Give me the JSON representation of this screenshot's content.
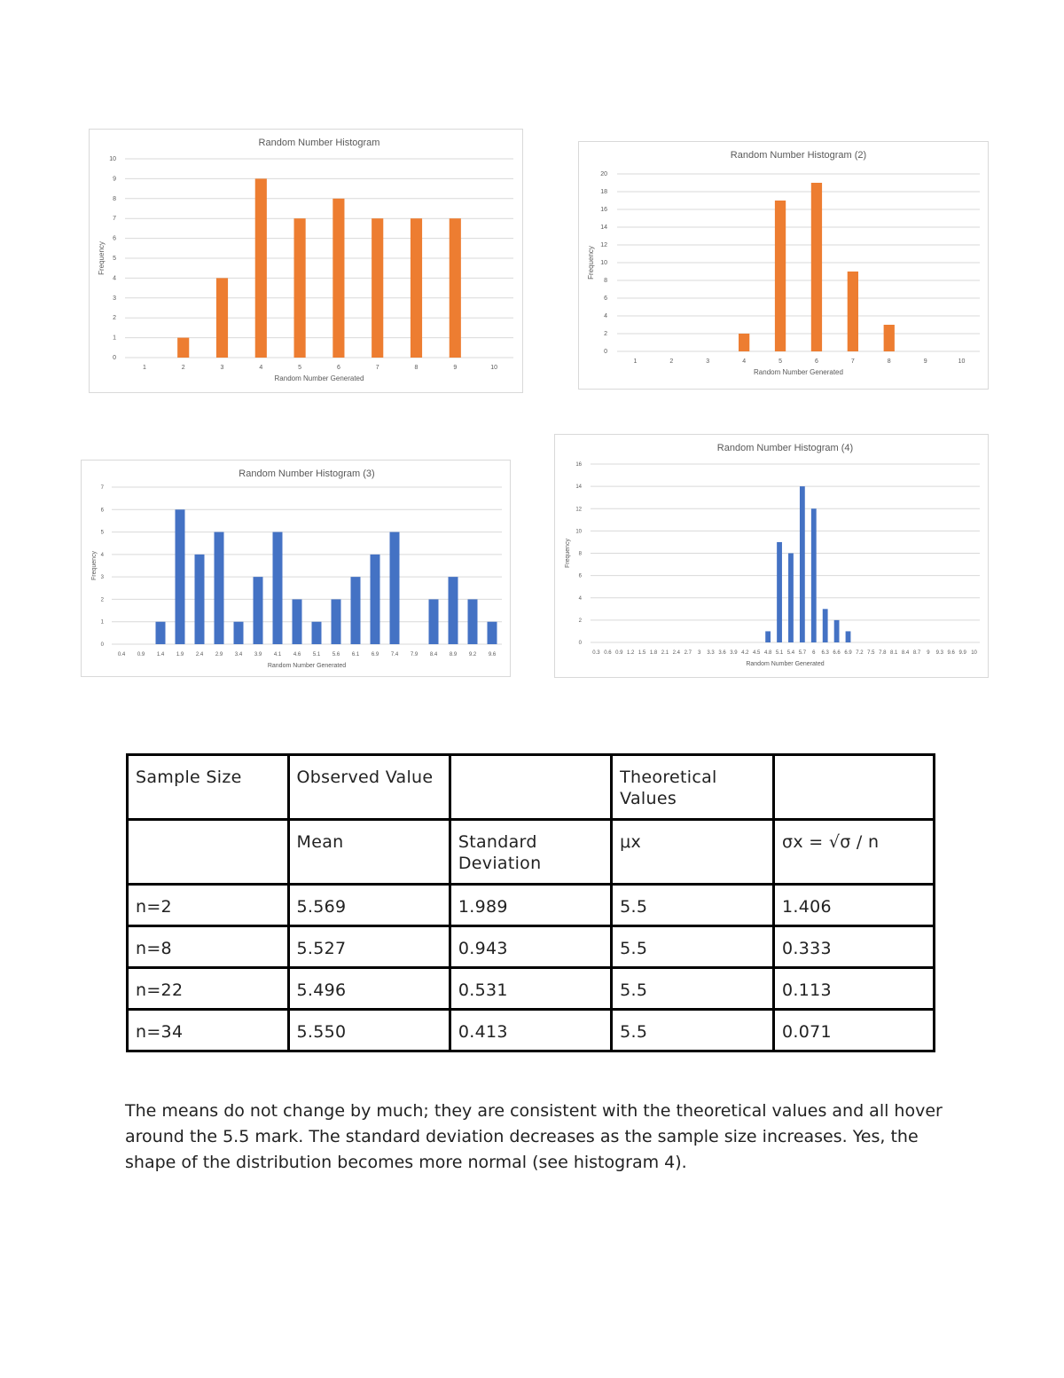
{
  "chart_data": [
    {
      "type": "bar",
      "title": "Random Number Histogram",
      "xlabel": "Random Number Generated",
      "ylabel": "Frequency",
      "categories": [
        "1",
        "2",
        "3",
        "4",
        "5",
        "6",
        "7",
        "8",
        "9",
        "10"
      ],
      "values": [
        0,
        1,
        4,
        9,
        7,
        8,
        7,
        7,
        7,
        0
      ],
      "yticks": [
        0,
        1,
        2,
        3,
        4,
        5,
        6,
        7,
        8,
        9,
        10
      ],
      "ylim": [
        0,
        10
      ],
      "color": "#ED7D31",
      "grid": true
    },
    {
      "type": "bar",
      "title": "Random Number Histogram (2)",
      "xlabel": "Random Number Generated",
      "ylabel": "Frequency",
      "categories": [
        "1",
        "2",
        "3",
        "4",
        "5",
        "6",
        "7",
        "8",
        "9",
        "10"
      ],
      "values": [
        0,
        0,
        0,
        2,
        17,
        19,
        9,
        3,
        0,
        0
      ],
      "yticks": [
        0,
        2,
        4,
        6,
        8,
        10,
        12,
        14,
        16,
        18,
        20
      ],
      "ylim": [
        0,
        20
      ],
      "color": "#ED7D31",
      "grid": true
    },
    {
      "type": "bar",
      "title": "Random Number Histogram (3)",
      "xlabel": "Random Number Generated",
      "ylabel": "Frequency",
      "categories": [
        "0.4",
        "0.9",
        "1.4",
        "1.9",
        "2.4",
        "2.9",
        "3.4",
        "3.9",
        "4.1",
        "4.6",
        "5.1",
        "5.6",
        "6.1",
        "6.9",
        "7.4",
        "7.9",
        "8.4",
        "8.9",
        "9.2",
        "9.6"
      ],
      "values": [
        0,
        0,
        1,
        6,
        4,
        5,
        1,
        3,
        5,
        2,
        1,
        2,
        3,
        4,
        5,
        0,
        2,
        3,
        2,
        1
      ],
      "yticks": [
        0,
        1,
        2,
        3,
        4,
        5,
        6,
        7
      ],
      "ylim": [
        0,
        7
      ],
      "color": "#4472C4",
      "grid": true
    },
    {
      "type": "bar",
      "title": "Random Number Histogram (4)",
      "xlabel": "Random Number Generated",
      "ylabel": "Frequency",
      "categories": [
        "0.3",
        "0.6",
        "0.9",
        "1.2",
        "1.5",
        "1.8",
        "2.1",
        "2.4",
        "2.7",
        "3",
        "3.3",
        "3.6",
        "3.9",
        "4.2",
        "4.5",
        "4.8",
        "5.1",
        "5.4",
        "5.7",
        "6",
        "6.3",
        "6.6",
        "6.9",
        "7.2",
        "7.5",
        "7.8",
        "8.1",
        "8.4",
        "8.7",
        "9",
        "9.3",
        "9.6",
        "9.9",
        "10"
      ],
      "values": [
        0,
        0,
        0,
        0,
        0,
        0,
        0,
        0,
        0,
        0,
        0,
        0,
        0,
        0,
        0,
        1,
        9,
        8,
        14,
        12,
        3,
        2,
        1,
        0,
        0,
        0,
        0,
        0,
        0,
        0,
        0,
        0,
        0,
        0
      ],
      "yticks": [
        0,
        2,
        4,
        6,
        8,
        10,
        12,
        14,
        16
      ],
      "ylim": [
        0,
        16
      ],
      "color": "#4472C4",
      "grid": true
    }
  ],
  "table": {
    "header1": [
      "Sample Size",
      "Observed Value",
      "",
      "Theoretical Values",
      ""
    ],
    "header2": [
      "",
      "Mean",
      "Standard Deviation",
      "μx",
      "σx = √σ / n"
    ],
    "rows": [
      [
        "n=2",
        "5.569",
        "1.989",
        "5.5",
        "1.406"
      ],
      [
        "n=8",
        "5.527",
        "0.943",
        "5.5",
        "0.333"
      ],
      [
        "n=22",
        "5.496",
        "0.531",
        "5.5",
        "0.113"
      ],
      [
        "n=34",
        "5.550",
        "0.413",
        "5.5",
        "0.071"
      ]
    ]
  },
  "summary": "The means do not change by much; they are consistent with the theoretical values and all hover around the 5.5 mark. The standard deviation decreases as the sample size increases. Yes, the shape of the distribution becomes more normal (see histogram 4)."
}
